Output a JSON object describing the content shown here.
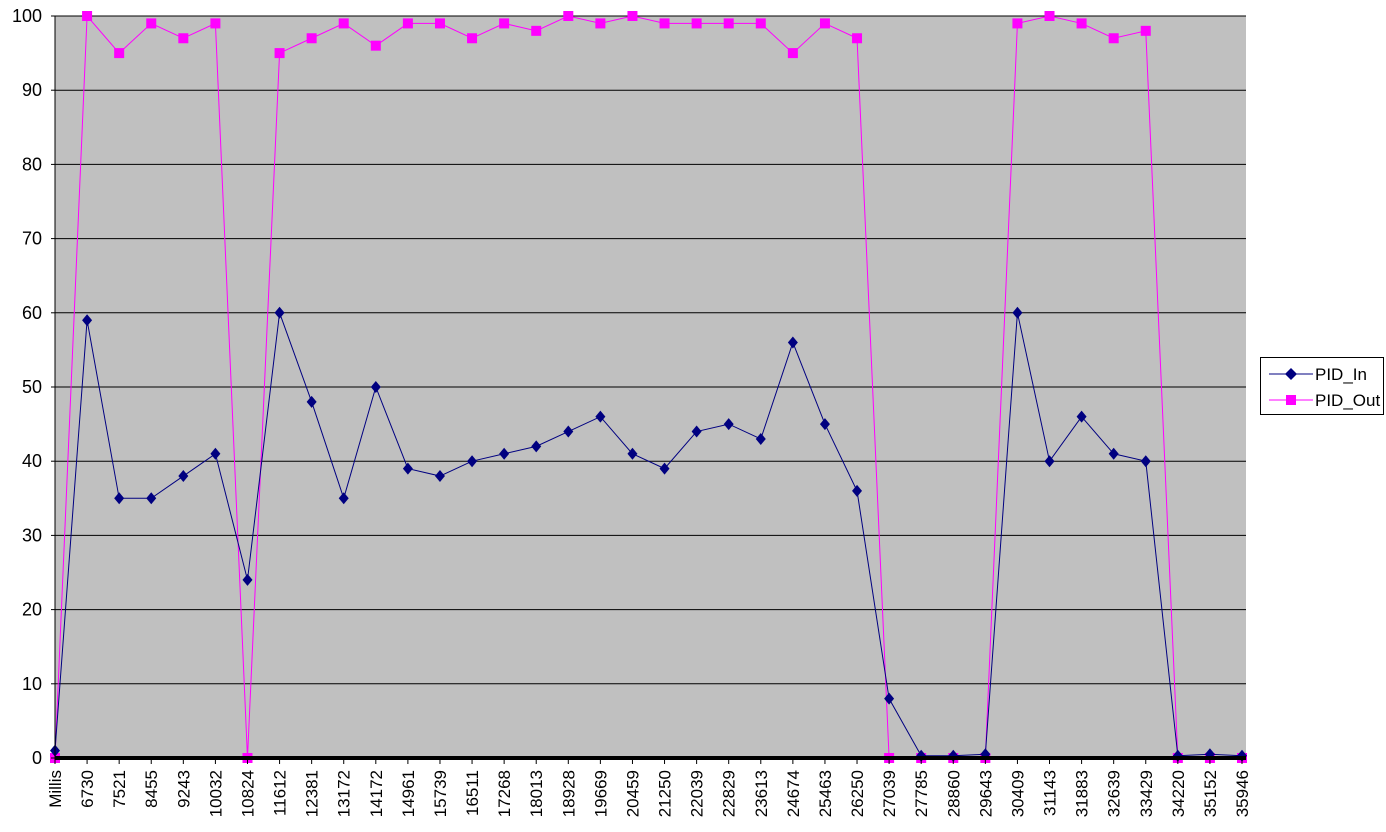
{
  "chart_data": {
    "type": "line",
    "title": "",
    "xlabel": "",
    "ylabel": "",
    "ylim": [
      0,
      100
    ],
    "yticks": [
      0,
      10,
      20,
      30,
      40,
      50,
      60,
      70,
      80,
      90,
      100
    ],
    "grid": true,
    "background": "#c0c0c0",
    "legend_position": "right",
    "categories": [
      "Millis",
      "6730",
      "7521",
      "8455",
      "9243",
      "10032",
      "10824",
      "11612",
      "12381",
      "13172",
      "14172",
      "14961",
      "15739",
      "16511",
      "17268",
      "18013",
      "18928",
      "19669",
      "20459",
      "21250",
      "22039",
      "22829",
      "23613",
      "24674",
      "25463",
      "26250",
      "27039",
      "27785",
      "28860",
      "29643",
      "30409",
      "31143",
      "31883",
      "32639",
      "33429",
      "34220",
      "35152",
      "35946"
    ],
    "series": [
      {
        "name": "PID_In",
        "color": "#000080",
        "marker": "diamond",
        "values": [
          1,
          59,
          35,
          35,
          38,
          41,
          24,
          60,
          48,
          35,
          50,
          39,
          38,
          40,
          41,
          42,
          44,
          46,
          41,
          39,
          44,
          45,
          43,
          56,
          45,
          36,
          8,
          0.3,
          0.3,
          0.5,
          60,
          40,
          46,
          41,
          40,
          0.3,
          0.5,
          0.3
        ]
      },
      {
        "name": "PID_Out",
        "color": "#ff00ff",
        "marker": "square",
        "values": [
          0,
          100,
          95,
          99,
          97,
          99,
          0,
          95,
          97,
          99,
          96,
          99,
          99,
          97,
          99,
          98,
          100,
          99,
          100,
          99,
          99,
          99,
          99,
          95,
          99,
          97,
          0,
          0,
          0,
          0,
          99,
          100,
          99,
          97,
          98,
          0,
          0,
          0
        ]
      }
    ]
  },
  "legend": {
    "items": [
      {
        "label": "PID_In",
        "color": "#000080",
        "marker": "diamond"
      },
      {
        "label": "PID_Out",
        "color": "#ff00ff",
        "marker": "square"
      }
    ]
  }
}
